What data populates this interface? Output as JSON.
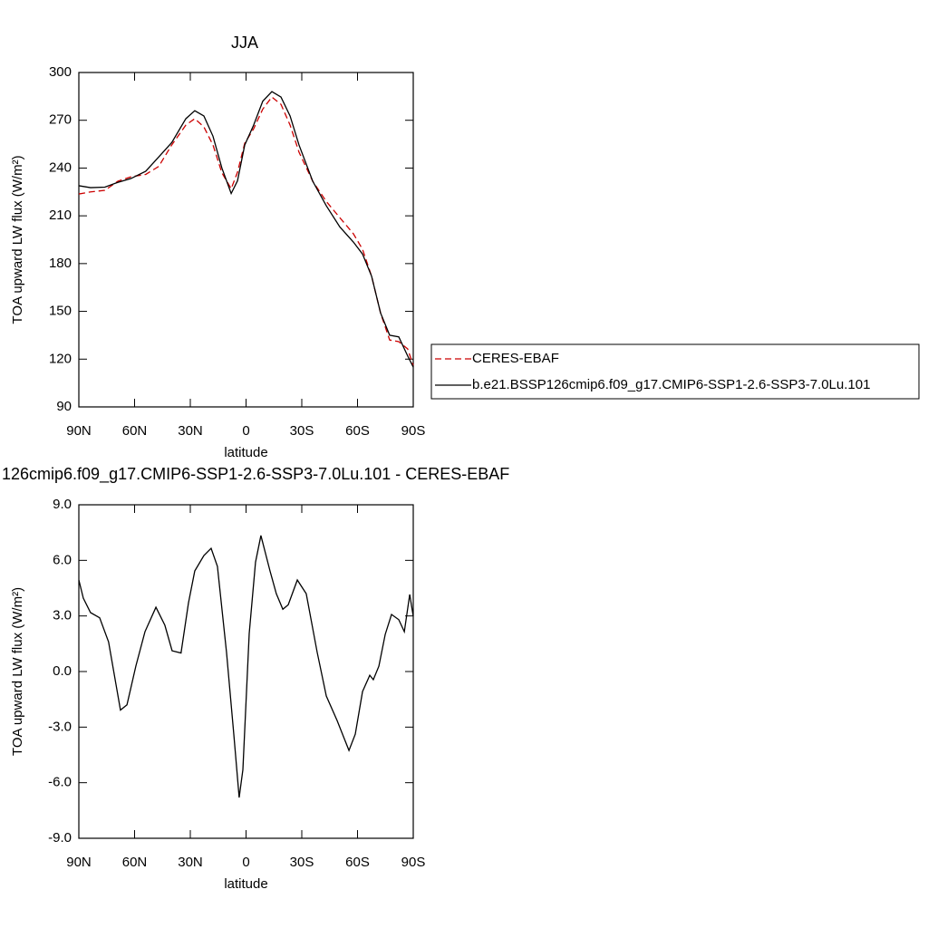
{
  "chart_data": [
    {
      "type": "line",
      "title": "JJA",
      "xlabel": "latitude",
      "ylabel": "TOA upward LW flux (W/m²)",
      "x": [
        90,
        83.7,
        76,
        69,
        62,
        54,
        47,
        40,
        32.4,
        27.6,
        22.7,
        17.8,
        13,
        8,
        4.6,
        0.7,
        -4.1,
        -9,
        -13.9,
        -18.8,
        -23.7,
        -28.5,
        -35.9,
        -43.2,
        -50.5,
        -57.8,
        -62.7,
        -67.6,
        -72.4,
        -77.3,
        -82.2,
        -87,
        -90
      ],
      "series": [
        {
          "name": "CERES-EBAF",
          "color": "#cc0000",
          "dash": true,
          "values": [
            223.7,
            225,
            226,
            231.7,
            234.5,
            236,
            241,
            254.5,
            267,
            271,
            265.8,
            254.5,
            237,
            227,
            237.4,
            255.6,
            264.7,
            277,
            284.6,
            280,
            267,
            250,
            231.7,
            219,
            208.8,
            198.7,
            189,
            172,
            149,
            132,
            131,
            126.4,
            116
          ]
        },
        {
          "name": "b.e21.BSSP126cmip6.f09_g17.CMIP6-SSP1-2.6-SSP3-7.0Lu.101",
          "color": "#000000",
          "dash": false,
          "values": [
            228.9,
            227.7,
            228,
            231,
            233.4,
            238,
            247,
            256,
            271,
            276,
            272.7,
            260,
            240,
            224,
            232,
            254.5,
            267,
            282,
            288,
            284.6,
            272.7,
            254.5,
            231.7,
            216.3,
            203,
            193.5,
            186,
            172,
            149,
            135,
            134,
            122,
            115
          ]
        }
      ],
      "xlim": [
        90,
        -90
      ],
      "xticks": [
        {
          "value": 90,
          "label": "90N"
        },
        {
          "value": 60,
          "label": "60N"
        },
        {
          "value": 30,
          "label": "30N"
        },
        0,
        {
          "value": -30,
          "label": "30S"
        },
        {
          "value": -60,
          "label": "60S"
        },
        {
          "value": -90,
          "label": "90S"
        }
      ],
      "ylim": [
        90,
        300
      ],
      "yticks": [
        90,
        120,
        150,
        180,
        210,
        240,
        270,
        300
      ],
      "legend": "outside-right"
    },
    {
      "type": "line",
      "title": "126cmip6.f09_g17.CMIP6-SSP1-2.6-SSP3-7.0Lu.101 - CERES-EBAF",
      "xlabel": "latitude",
      "ylabel": "TOA upward LW flux (W/m²)",
      "x": [
        90,
        87.6,
        83.7,
        78.8,
        74,
        70,
        67.6,
        64.1,
        59.3,
        54.4,
        48.5,
        43.7,
        39.8,
        35,
        31,
        27.6,
        22.7,
        18.8,
        15.4,
        10.5,
        6.6,
        3.7,
        1.7,
        -1.7,
        -5.1,
        -8,
        -12.9,
        -16.3,
        -19.8,
        -22.7,
        -27.6,
        -32.4,
        -38.3,
        -43.2,
        -49,
        -55.4,
        -58.8,
        -62.7,
        -66.6,
        -68.5,
        -71.5,
        -74.9,
        -78.3,
        -82.2,
        -85.2,
        -88.1,
        -90
      ],
      "series": [
        {
          "color": "#000000",
          "dash": false,
          "values": [
            4.94,
            3.96,
            3.18,
            2.9,
            1.6,
            -0.7,
            -2.08,
            -1.8,
            0.3,
            2.15,
            3.47,
            2.5,
            1.12,
            1.0,
            3.7,
            5.43,
            6.26,
            6.65,
            5.67,
            1.03,
            -3.38,
            -6.8,
            -5.3,
            2.05,
            5.9,
            7.34,
            5.43,
            4.2,
            3.36,
            3.6,
            4.94,
            4.2,
            1.03,
            -1.32,
            -2.64,
            -4.26,
            -3.38,
            -1.08,
            -0.2,
            -0.44,
            0.29,
            2.0,
            3.08,
            2.8,
            2.15,
            4.16,
            2.98
          ]
        }
      ],
      "xlim": [
        90,
        -90
      ],
      "xticks": [
        {
          "value": 90,
          "label": "90N"
        },
        {
          "value": 60,
          "label": "60N"
        },
        {
          "value": 30,
          "label": "30N"
        },
        0,
        {
          "value": -30,
          "label": "30S"
        },
        {
          "value": -60,
          "label": "60S"
        },
        {
          "value": -90,
          "label": "90S"
        }
      ],
      "ylim": [
        -9,
        9
      ],
      "yticks": [
        {
          "value": -9,
          "label": "-9.0"
        },
        {
          "value": -6,
          "label": "-6.0"
        },
        {
          "value": -3,
          "label": "-3.0"
        },
        {
          "value": 0,
          "label": "0.0"
        },
        {
          "value": 3,
          "label": "3.0"
        },
        {
          "value": 6,
          "label": "6.0"
        },
        {
          "value": 9,
          "label": "9.0"
        }
      ]
    }
  ]
}
